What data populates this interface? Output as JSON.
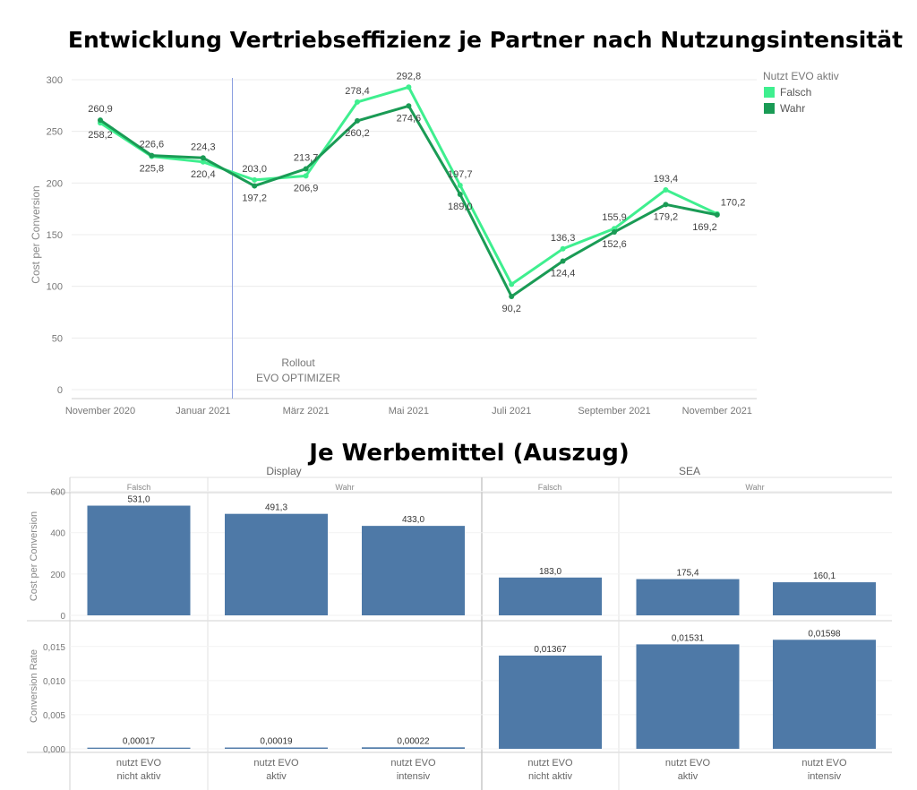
{
  "title": "Entwicklung Vertriebseffizienz je Partner nach Nutzungsintensität",
  "subtitle": "Je Werbemittel (Auszug)",
  "chart_data": [
    {
      "type": "line",
      "ylabel": "Cost per Conversion",
      "ylim": [
        0,
        300
      ],
      "yticks": [
        0,
        50,
        100,
        150,
        200,
        250,
        300
      ],
      "xticklabels": [
        "November 2020",
        "Januar 2021",
        "März 2021",
        "Mai 2021",
        "Juli 2021",
        "September 2021",
        "November 2021"
      ],
      "legend_title": "Nutzt EVO aktiv",
      "annotation": [
        "Rollout",
        "EVO OPTIMIZER"
      ],
      "x": [
        "2020-11",
        "2020-12",
        "2021-01",
        "2021-02",
        "2021-03",
        "2021-04",
        "2021-05",
        "2021-06",
        "2021-07",
        "2021-08",
        "2021-09",
        "2021-10",
        "2021-11"
      ],
      "series": [
        {
          "name": "Falsch",
          "color": "#3fef8f",
          "values": [
            258.2,
            225.8,
            220.4,
            203.0,
            206.9,
            278.4,
            292.8,
            197.7,
            102.0,
            136.3,
            155.9,
            193.4,
            170.2
          ],
          "labels": [
            "258,2",
            "225,8",
            "220,4",
            "203,0",
            "206,9",
            "278,4",
            "292,8",
            "197,7",
            "",
            "136,3",
            "155,9",
            "193,4",
            "170,2"
          ]
        },
        {
          "name": "Wahr",
          "color": "#1a9b55",
          "values": [
            260.9,
            226.6,
            224.3,
            197.2,
            213.7,
            260.2,
            274.6,
            189.0,
            90.2,
            124.4,
            152.6,
            179.2,
            169.2
          ],
          "labels": [
            "260,9",
            "226,6",
            "224,3",
            "197,2",
            "213,7",
            "260,2",
            "274,6",
            "189,0",
            "90,2",
            "124,4",
            "152,6",
            "179,2",
            "169,2"
          ]
        }
      ]
    },
    {
      "type": "bar",
      "group_headers": [
        "Display",
        "SEA"
      ],
      "sub_headers": [
        "Falsch",
        "Wahr",
        "Falsch",
        "Wahr"
      ],
      "categories": [
        "nutzt EVO nicht aktiv",
        "nutzt EVO aktiv",
        "nutzt EVO intensiv",
        "nutzt EVO nicht aktiv",
        "nutzt EVO aktiv",
        "nutzt EVO intensiv"
      ],
      "category_lines": [
        [
          "nutzt EVO",
          "nicht aktiv"
        ],
        [
          "nutzt EVO",
          "aktiv"
        ],
        [
          "nutzt EVO",
          "intensiv"
        ],
        [
          "nutzt EVO",
          "nicht aktiv"
        ],
        [
          "nutzt EVO",
          "aktiv"
        ],
        [
          "nutzt EVO",
          "intensiv"
        ]
      ],
      "bar_color": "#4e79a7",
      "panels": [
        {
          "ylabel": "Cost per Conversion",
          "ylim": [
            0,
            620
          ],
          "yticks": [
            0,
            200,
            400,
            600
          ],
          "yticklabels": [
            "0",
            "200",
            "400",
            "600"
          ],
          "values": [
            531.0,
            491.3,
            433.0,
            183.0,
            175.4,
            160.1
          ],
          "labels": [
            "531,0",
            "491,3",
            "433,0",
            "183,0",
            "175,4",
            "160,1"
          ]
        },
        {
          "ylabel": "Conversion Rate",
          "ylim": [
            0,
            0.0172
          ],
          "yticks": [
            0,
            0.005,
            0.01,
            0.015
          ],
          "yticklabels": [
            "0,000",
            "0,005",
            "0,010",
            "0,015"
          ],
          "values": [
            0.00017,
            0.00019,
            0.00022,
            0.01367,
            0.01531,
            0.01598
          ],
          "labels": [
            "0,00017",
            "0,00019",
            "0,00022",
            "0,01367",
            "0,01531",
            "0,01598"
          ]
        }
      ]
    }
  ]
}
